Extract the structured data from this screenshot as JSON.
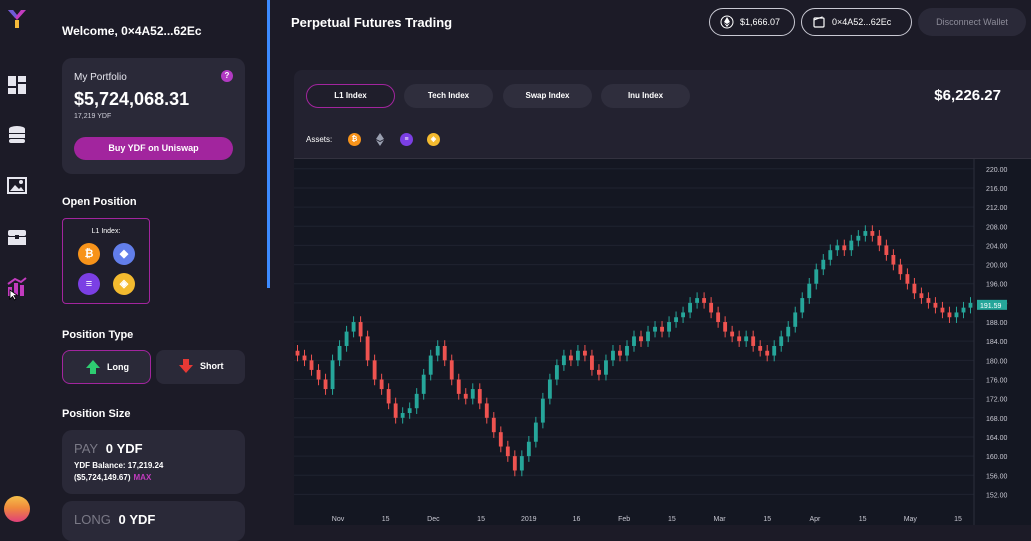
{
  "nav": {
    "icons": [
      "logo-icon",
      "dashboard-icon",
      "coins-icon",
      "gallery-icon",
      "chest-icon",
      "trading-icon"
    ]
  },
  "sidebar": {
    "welcome": "Welcome, 0×4A52...62Ec",
    "portfolio": {
      "title": "My Portfolio",
      "help": "?",
      "value": "$5,724,068.31",
      "sub": "17,219 YDF",
      "buy_label": "Buy YDF on Uniswap"
    },
    "open_position": {
      "title": "Open Position",
      "index_label": "L1 Index:",
      "coins": [
        "bitcoin",
        "ethereum",
        "solana",
        "binance"
      ]
    },
    "position_type": {
      "title": "Position Type",
      "long_label": "Long",
      "short_label": "Short"
    },
    "position_size": {
      "title": "Position Size",
      "pay_key": "PAY",
      "pay_value": "0",
      "pay_unit": "YDF",
      "balance_line": "YDF Balance: 17,219.24",
      "balance_usd": "($5,724,149.67)",
      "max_label": "MAX",
      "long_key": "LONG",
      "long_value": "0",
      "long_unit": "YDF"
    }
  },
  "header": {
    "title": "Perpetual Futures Trading",
    "price": "$1,666.07",
    "address": "0×4A52...62Ec",
    "disconnect": "Disconnect Wallet"
  },
  "tabs": [
    {
      "label": "L1 Index"
    },
    {
      "label": "Tech Index"
    },
    {
      "label": "Swap Index"
    },
    {
      "label": "Inu Index"
    }
  ],
  "index_price": "$6,226.27",
  "assets_label": "Assets:",
  "colors": {
    "accent": "#a2259e",
    "up": "#26a69a",
    "down": "#ef5350",
    "panel": "#232230"
  },
  "chart_data": {
    "type": "candlestick",
    "x_ticks": [
      "Nov",
      "15",
      "Dec",
      "15",
      "2019",
      "16",
      "Feb",
      "15",
      "Mar",
      "15",
      "Apr",
      "15",
      "May",
      "15"
    ],
    "y_ticks": [
      152,
      156,
      160,
      164,
      168,
      172,
      176,
      180,
      184,
      188,
      192,
      196,
      200,
      204,
      208,
      212,
      216,
      220
    ],
    "y_ticks_text": [
      "152.00",
      "156.00",
      "160.00",
      "164.00",
      "168.00",
      "172.00",
      "176.00",
      "180.00",
      "184.00",
      "188.00",
      "192.00",
      "196.00",
      "200.00",
      "204.00",
      "208.00",
      "212.00",
      "216.00",
      "220.00"
    ],
    "ylim": [
      150,
      221
    ],
    "last_price": 191.59,
    "last_price_text": "191.59",
    "closes": [
      181,
      180,
      178,
      176,
      174,
      180,
      183,
      186,
      188,
      185,
      180,
      176,
      174,
      171,
      168,
      169,
      170,
      173,
      177,
      181,
      183,
      180,
      176,
      173,
      172,
      174,
      171,
      168,
      165,
      162,
      160,
      157,
      160,
      163,
      167,
      172,
      176,
      179,
      181,
      180,
      182,
      181,
      178,
      177,
      180,
      182,
      181,
      183,
      185,
      184,
      186,
      187,
      186,
      188,
      189,
      190,
      192,
      193,
      192,
      190,
      188,
      186,
      185,
      184,
      185,
      183,
      182,
      181,
      183,
      185,
      187,
      190,
      193,
      196,
      199,
      201,
      203,
      204,
      203,
      205,
      206,
      207,
      206,
      204,
      202,
      200,
      198,
      196,
      194,
      193,
      192,
      191,
      190,
      189,
      190,
      191,
      192
    ]
  }
}
